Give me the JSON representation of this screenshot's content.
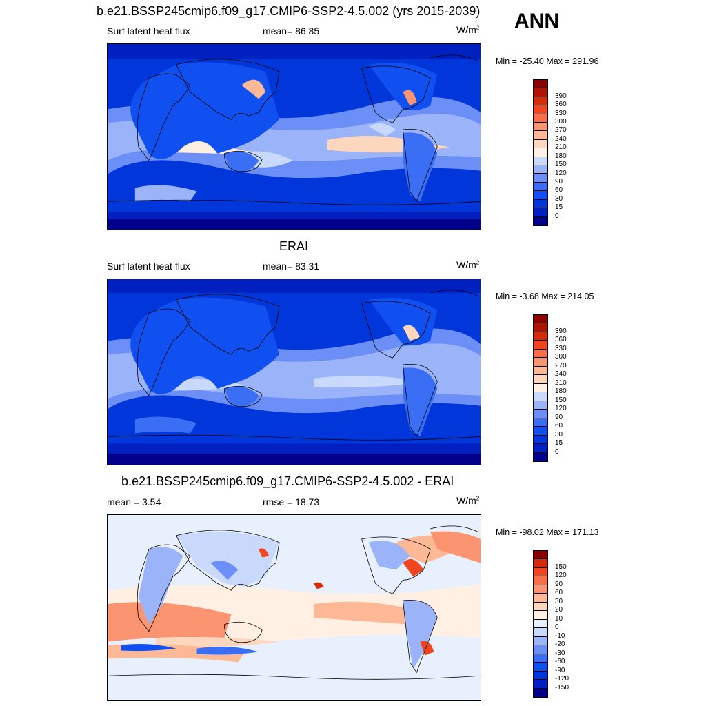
{
  "header": {
    "title": "b.e21.BSSP245cmip6.f09_g17.CMIP6-SSP2-4.5.002 (yrs 2015-2039)",
    "season": "ANN"
  },
  "panels": [
    {
      "id": "model",
      "title": "",
      "variable": "Surf latent heat flux",
      "stat": "mean=  86.85",
      "units_base": "W/m",
      "units_exp": "2",
      "minmax": "Min = -25.40 Max = 291.96",
      "colors": [
        "#00008b",
        "#0020c0",
        "#0036da",
        "#1050f0",
        "#3a6ef4",
        "#6b8ff6",
        "#9bb3f8",
        "#c8d9fb",
        "#fff0e3",
        "#fdd7bd",
        "#fdb895",
        "#fb9470",
        "#f76e47",
        "#f14520",
        "#d52b0b",
        "#b01400",
        "#8b0000"
      ],
      "labels": [
        "0",
        "15",
        "30",
        "60",
        "90",
        "120",
        "150",
        "180",
        "210",
        "240",
        "270",
        "300",
        "330",
        "360",
        "390"
      ]
    },
    {
      "id": "obs",
      "title": "ERAI",
      "variable": "Surf latent heat flux",
      "stat": "mean=  83.31",
      "units_base": "W/m",
      "units_exp": "2",
      "minmax": "Min =  -3.68 Max = 214.05",
      "colors": [
        "#00008b",
        "#0020c0",
        "#0036da",
        "#1050f0",
        "#3a6ef4",
        "#6b8ff6",
        "#9bb3f8",
        "#c8d9fb",
        "#fff0e3",
        "#fdd7bd",
        "#fdb895",
        "#fb9470",
        "#f76e47",
        "#f14520",
        "#d52b0b",
        "#b01400",
        "#8b0000"
      ],
      "labels": [
        "0",
        "15",
        "30",
        "60",
        "90",
        "120",
        "150",
        "180",
        "210",
        "240",
        "270",
        "300",
        "330",
        "360",
        "390"
      ]
    },
    {
      "id": "diff",
      "title": "b.e21.BSSP245cmip6.f09_g17.CMIP6-SSP2-4.5.002 - ERAI",
      "variable": "mean =   3.54",
      "stat": "rmse =  18.73",
      "units_base": "W/m",
      "units_exp": "2",
      "minmax": "Min = -98.02 Max = 171.13",
      "colors": [
        "#00008b",
        "#0020c0",
        "#0036da",
        "#1050f0",
        "#3a6ef4",
        "#6b8ff6",
        "#9bb3f8",
        "#c8d9fb",
        "#e8f0fd",
        "#fff0e3",
        "#fdd7bd",
        "#fdb895",
        "#fb9470",
        "#f76e47",
        "#f14520",
        "#d52b0b",
        "#8b0000"
      ],
      "labels": [
        "-150",
        "-120",
        "-90",
        "-60",
        "-30",
        "-20",
        "-10",
        "0",
        "10",
        "20",
        "30",
        "60",
        "90",
        "120",
        "150"
      ]
    }
  ]
}
